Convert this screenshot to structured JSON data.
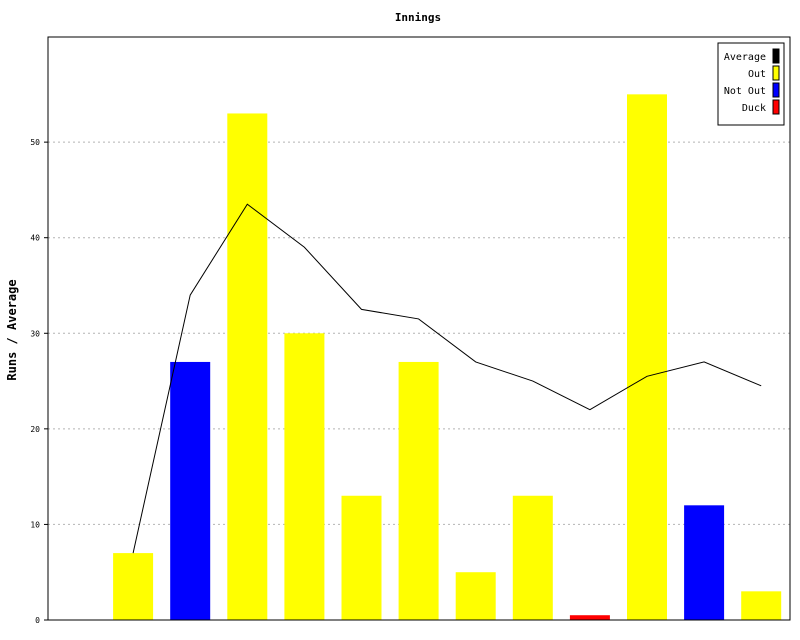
{
  "chart_data": {
    "type": "bar",
    "title": "Innings",
    "xlabel": "",
    "ylabel": "Runs / Average",
    "ylim": [
      0,
      61
    ],
    "yticks": [
      0,
      10,
      20,
      30,
      40,
      50
    ],
    "grid": true,
    "legend_position": "top-right",
    "legend": [
      {
        "name": "Average",
        "color": "#000000"
      },
      {
        "name": "Out",
        "color": "#ffff00"
      },
      {
        "name": "Not Out",
        "color": "#0000ff"
      },
      {
        "name": "Duck",
        "color": "#ff0000"
      }
    ],
    "bars": [
      {
        "value": 0,
        "status": "Out"
      },
      {
        "value": 7,
        "status": "Out"
      },
      {
        "value": 27,
        "status": "Not Out"
      },
      {
        "value": 53,
        "status": "Out"
      },
      {
        "value": 30,
        "status": "Out"
      },
      {
        "value": 13,
        "status": "Out"
      },
      {
        "value": 27,
        "status": "Out"
      },
      {
        "value": 5,
        "status": "Out"
      },
      {
        "value": 13,
        "status": "Out"
      },
      {
        "value": 0.5,
        "status": "Duck"
      },
      {
        "value": 55,
        "status": "Out"
      },
      {
        "value": 12,
        "status": "Not Out"
      },
      {
        "value": 3,
        "status": "Out"
      }
    ],
    "average_line": [
      null,
      7,
      34,
      43.5,
      39,
      32.5,
      31.5,
      27,
      25,
      22,
      25.5,
      27,
      24.5
    ]
  }
}
